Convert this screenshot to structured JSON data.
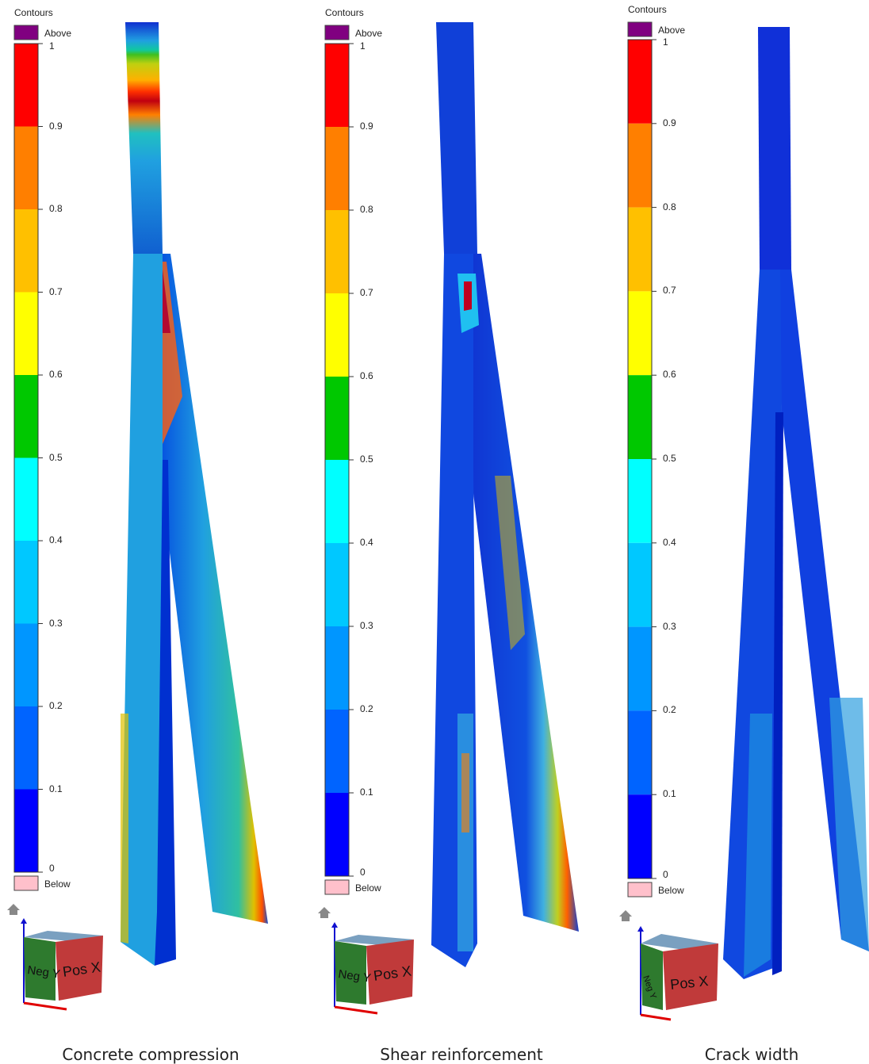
{
  "legend": {
    "title": "Contours",
    "above_label": "Above",
    "below_label": "Below",
    "ticks": [
      "1",
      "0.9",
      "0.8",
      "0.7",
      "0.6",
      "0.5",
      "0.4",
      "0.3",
      "0.2",
      "0.1",
      "0"
    ],
    "band_colors": [
      "#ff0000",
      "#ff7f00",
      "#ffc000",
      "#ffff00",
      "#00c800",
      "#00ffff",
      "#00c8ff",
      "#0096ff",
      "#0064ff",
      "#0000ff"
    ],
    "above_color": "#800080",
    "below_color": "#ffc0cb"
  },
  "view_cube": {
    "face_left": "Neg Y",
    "face_right": "Pos X"
  },
  "panels": [
    {
      "caption": "Concrete compression"
    },
    {
      "caption": "Shear reinforcement"
    },
    {
      "caption": "Crack width"
    }
  ]
}
